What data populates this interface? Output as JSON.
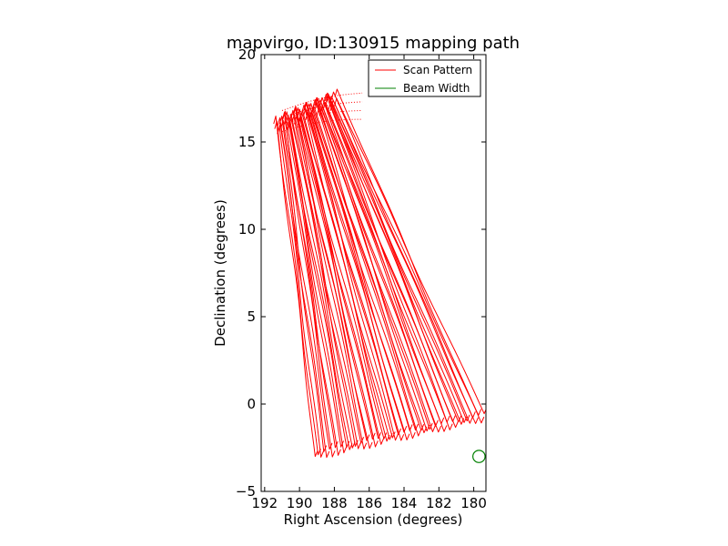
{
  "chart_data": {
    "type": "line",
    "title": "mapvirgo, ID:130915 mapping path",
    "xlabel": "Right Ascension (degrees)",
    "ylabel": "Declination (degrees)",
    "xlim": [
      192.2,
      179.3
    ],
    "ylim": [
      -5,
      20
    ],
    "x_reversed": true,
    "xticks": [
      192,
      190,
      188,
      186,
      184,
      182,
      180
    ],
    "yticks": [
      -5,
      0,
      5,
      10,
      15,
      20
    ],
    "xtick_labels": [
      "192",
      "190",
      "188",
      "186",
      "184",
      "182",
      "180"
    ],
    "ytick_labels": [
      "−5",
      "0",
      "5",
      "10",
      "15",
      "20"
    ],
    "grid": false,
    "legend_position": "top-right",
    "series": [
      {
        "name": "Scan Pattern",
        "color": "#ff0000",
        "scan_count": 60,
        "north_edge": {
          "start": [
            191.3,
            16.5
          ],
          "end": [
            187.9,
            18.0
          ]
        },
        "south_edge": {
          "start": [
            189.1,
            -3.0
          ],
          "end": [
            179.4,
            -0.8
          ]
        },
        "sample_paths": [
          {
            "x": [
              191.3,
              189.1
            ],
            "y": [
              16.5,
              -3.0
            ]
          },
          {
            "x": [
              189.6,
              184.2
            ],
            "y": [
              17.2,
              -1.9
            ]
          },
          {
            "x": [
              187.9,
              179.4
            ],
            "y": [
              18.0,
              -0.8
            ]
          }
        ]
      },
      {
        "name": "Beam Width",
        "color": "#008000",
        "center": {
          "x": 179.7,
          "y": -3.0
        },
        "diameter_deg": 0.7
      }
    ]
  }
}
